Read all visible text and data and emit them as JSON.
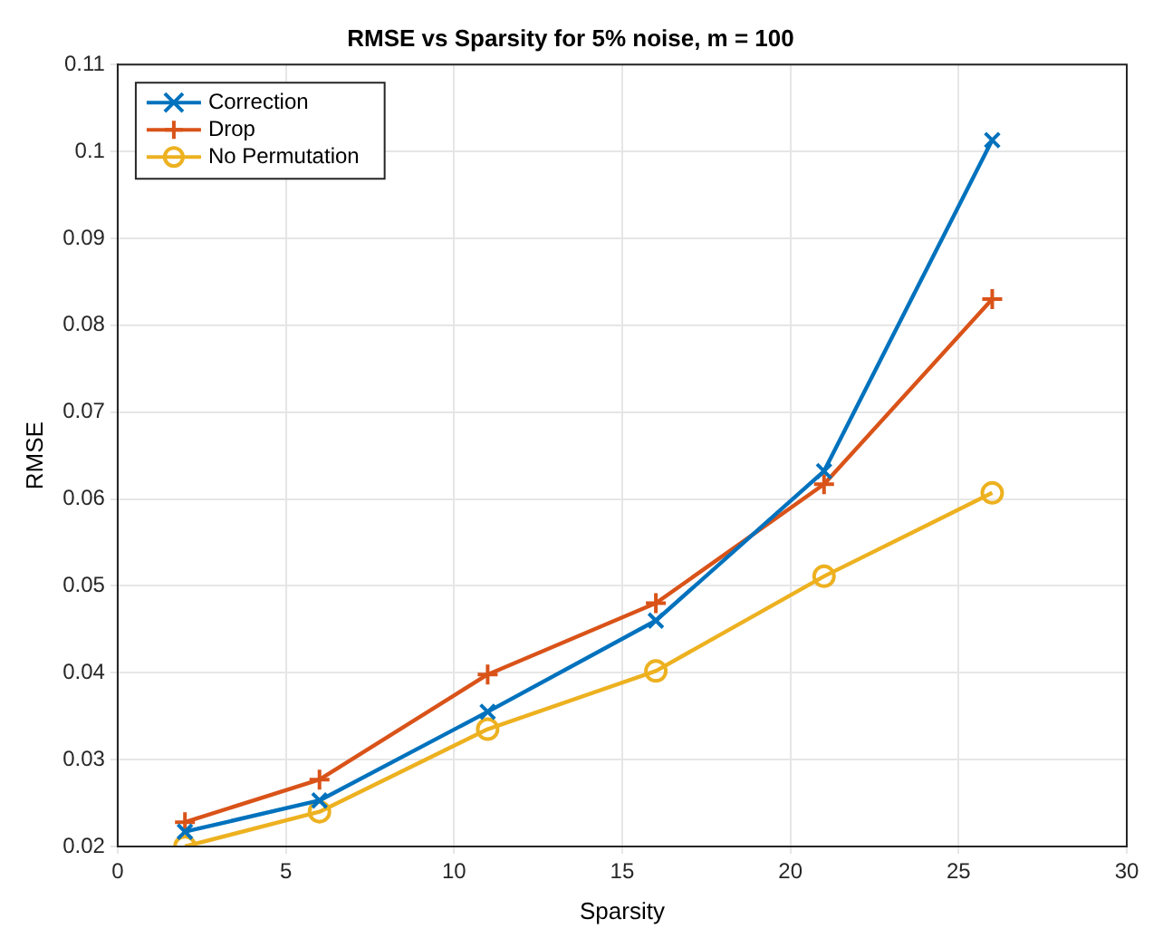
{
  "chart_data": {
    "type": "line",
    "title": "RMSE vs Sparsity for 5% noise, m = 100",
    "xlabel": "Sparsity",
    "ylabel": "RMSE",
    "xlim": [
      0,
      30
    ],
    "xticks": [
      0,
      5,
      10,
      15,
      20,
      25,
      30
    ],
    "ylim": [
      0.02,
      0.11
    ],
    "yticks": [
      0.02,
      0.03,
      0.04,
      0.05,
      0.06,
      0.07,
      0.08,
      0.09,
      0.1,
      0.11
    ],
    "grid": true,
    "legend": "top left",
    "line_style": "solid",
    "series": [
      {
        "name": "Correction",
        "color": "#0072bd",
        "marker": "cross",
        "x": [
          2,
          6,
          11,
          16,
          21,
          26
        ],
        "values": [
          0.0217,
          0.0253,
          0.0355,
          0.046,
          0.0632,
          0.1013
        ]
      },
      {
        "name": "Drop",
        "color": "#d95319",
        "marker": "plus",
        "x": [
          2,
          6,
          11,
          16,
          21,
          26
        ],
        "values": [
          0.0228,
          0.0277,
          0.0398,
          0.048,
          0.0617,
          0.083
        ]
      },
      {
        "name": "No Permutation",
        "color": "#edb120",
        "marker": "circle",
        "x": [
          2,
          6,
          11,
          16,
          21,
          26
        ],
        "values": [
          0.02,
          0.024,
          0.0335,
          0.0402,
          0.0511,
          0.0607
        ]
      }
    ]
  }
}
